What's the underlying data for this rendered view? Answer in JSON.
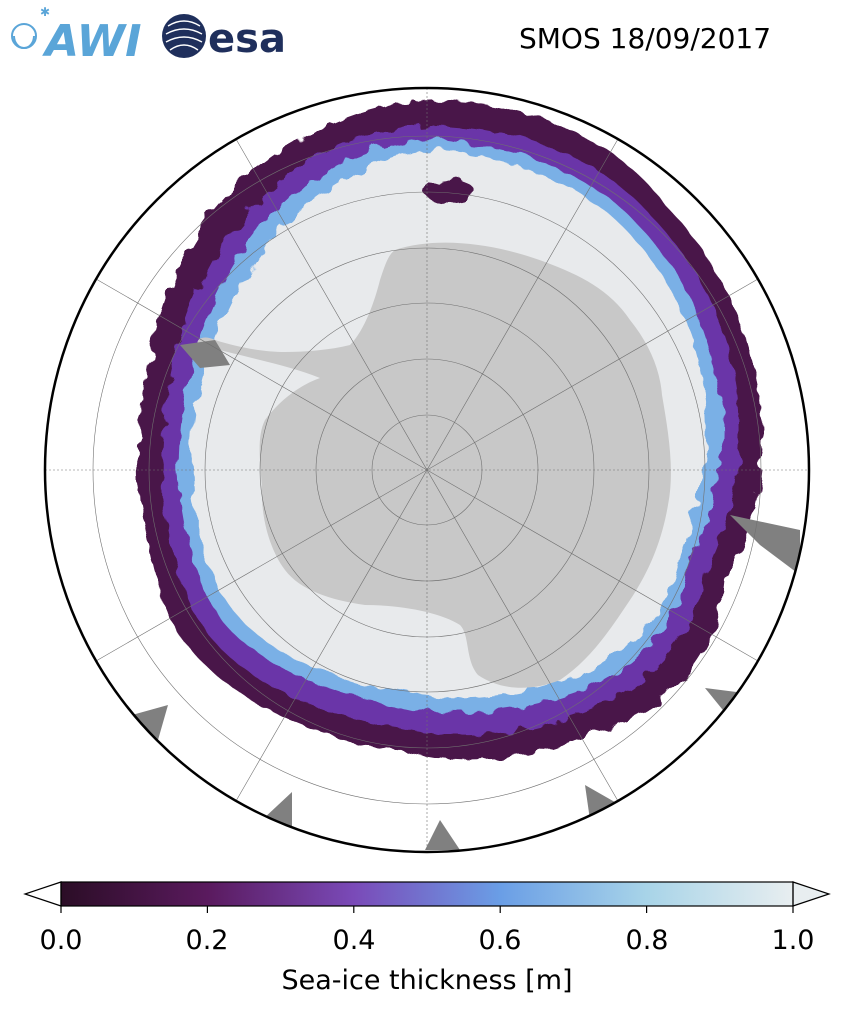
{
  "title": "SMOS 18/09/2017",
  "logos": [
    {
      "name": "AWI",
      "text": "AWI"
    },
    {
      "name": "esa",
      "text": "esa"
    }
  ],
  "map": {
    "projection": "south polar stereographic",
    "region": "Antarctica / Southern Ocean",
    "graticule": "dashed grey meridians and parallels",
    "colors": {
      "land": "#c8c8c8",
      "no_data": "#808080",
      "ocean": "#ffffff",
      "frame": "#000000"
    }
  },
  "colorbar": {
    "label": "Sea-ice thickness [m]",
    "range": [
      0.0,
      1.0
    ],
    "ticks": [
      "0.0",
      "0.2",
      "0.4",
      "0.6",
      "0.8",
      "1.0"
    ],
    "extend": "both",
    "colors": [
      "#2b0d26",
      "#5a1a5e",
      "#7a4ab8",
      "#6a9ee6",
      "#a8d4e8",
      "#e8eef0"
    ]
  }
}
